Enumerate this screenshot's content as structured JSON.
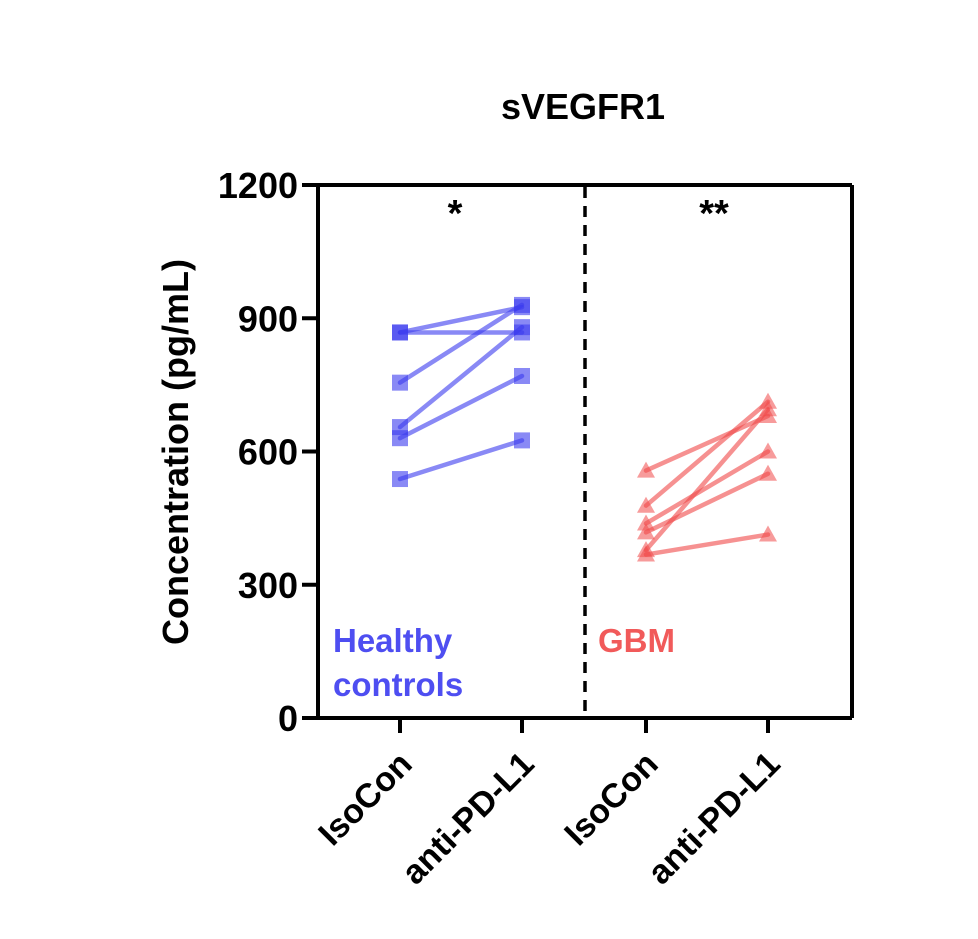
{
  "chart_data": {
    "type": "line",
    "title": "sVEGFR1",
    "ylabel": "Concentration (pg/mL)",
    "xlabel": "",
    "ylim": [
      0,
      1200
    ],
    "yticks": [
      0,
      300,
      600,
      900,
      1200
    ],
    "categories": [
      "IsoCon",
      "anti-PD-L1",
      "IsoCon",
      "anti-PD-L1"
    ],
    "grid": false,
    "groups": [
      {
        "name": "Healthy controls",
        "name_lines": [
          "Healthy",
          "controls"
        ],
        "color": "#3b3bef",
        "marker": "square",
        "significance": "*",
        "pairs": [
          [
            868,
            925
          ],
          [
            755,
            930
          ],
          [
            655,
            880
          ],
          [
            630,
            770
          ],
          [
            538,
            625
          ],
          [
            868,
            868
          ]
        ]
      },
      {
        "name": "GBM",
        "name_lines": [
          "GBM"
        ],
        "color": "#f04848",
        "marker": "triangle",
        "significance": "**",
        "pairs": [
          [
            557,
            680
          ],
          [
            478,
            712
          ],
          [
            438,
            600
          ],
          [
            418,
            550
          ],
          [
            378,
            695
          ],
          [
            368,
            413
          ]
        ]
      }
    ]
  }
}
